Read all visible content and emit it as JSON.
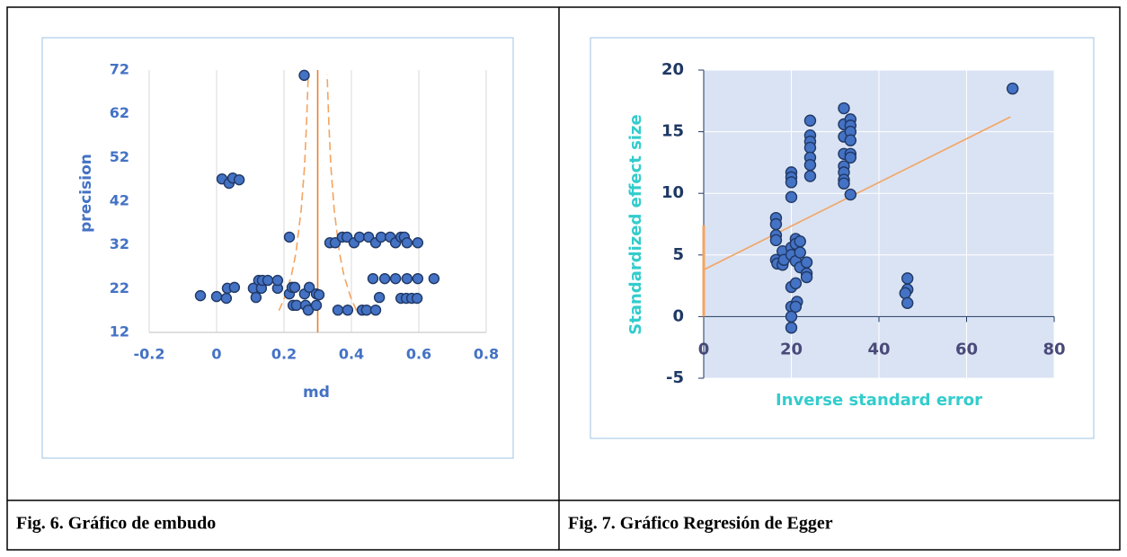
{
  "table": {
    "captions": [
      "Fig. 6. Gráfico de embudo",
      "Fig. 7. Gráfico Regresión de Egger"
    ]
  },
  "chart_data": [
    {
      "type": "scatter",
      "xlabel": "md",
      "ylabel": "precision",
      "xlim": [
        -0.2,
        0.8
      ],
      "xticks": [
        -0.2,
        0,
        0.2,
        0.4,
        0.6,
        0.8
      ],
      "ylim": [
        12,
        72
      ],
      "yticks": [
        12,
        22,
        32,
        42,
        52,
        62,
        72
      ],
      "grid": "x",
      "series": [
        {
          "color": "#4472c4",
          "style": "markers",
          "x": [
            0.26,
            0.016,
            0.037,
            0.048,
            0.067,
            0.216,
            0.336,
            0.352,
            0.373,
            0.387,
            0.408,
            0.424,
            0.451,
            0.472,
            0.488,
            0.515,
            0.531,
            0.547,
            0.557,
            0.565,
            0.597,
            0.464,
            0.499,
            0.531,
            0.565,
            0.597,
            0.645,
            0.483,
            0.547,
            0.563,
            0.579,
            0.595,
            -0.048,
            0,
            0.029,
            0.032,
            0.053,
            0.109,
            0.117,
            0.125,
            0.133,
            0.136,
            0.152,
            0.181,
            0.181,
            0.216,
            0.224,
            0.232,
            0.227,
            0.237,
            0.261,
            0.264,
            0.275,
            0.272,
            0.296,
            0.296,
            0.304,
            0.36,
            0.389,
            0.432,
            0.445,
            0.472
          ],
          "y": [
            70.8,
            47.1,
            46.1,
            47.3,
            46.9,
            33.8,
            32.5,
            32.5,
            33.8,
            33.8,
            32.5,
            33.8,
            33.8,
            32.5,
            33.8,
            33.8,
            32.5,
            33.8,
            33.8,
            32.5,
            32.5,
            24.3,
            24.3,
            24.3,
            24.3,
            24.3,
            24.3,
            20.0,
            19.8,
            19.8,
            19.8,
            19.8,
            20.4,
            20.2,
            19.8,
            22.1,
            22.3,
            22.1,
            20.0,
            23.9,
            22.1,
            23.9,
            23.9,
            22.1,
            23.9,
            20.8,
            22.3,
            22.3,
            18.2,
            18.2,
            20.8,
            18.2,
            22.3,
            17.1,
            20.8,
            18.2,
            20.6,
            17.1,
            17.1,
            17.1,
            17.1,
            17.1
          ]
        },
        {
          "color": "#f4a460",
          "style": "dashed",
          "x": [
            0.185,
            0.202,
            0.222,
            0.235,
            0.251,
            0.261,
            0.267,
            0.272
          ],
          "y": [
            17,
            20,
            25,
            30,
            40,
            50,
            60,
            71
          ]
        },
        {
          "color": "#f4a460",
          "style": "dashed",
          "x": [
            0.415,
            0.398,
            0.378,
            0.365,
            0.349,
            0.339,
            0.333,
            0.328
          ],
          "y": [
            17,
            20,
            25,
            30,
            40,
            50,
            60,
            71
          ]
        },
        {
          "color": "#ed7d31",
          "style": "solid",
          "x": [
            0.3,
            0.3
          ],
          "y": [
            12,
            72
          ]
        }
      ]
    },
    {
      "type": "scatter",
      "xlabel": "Inverse standard error",
      "ylabel": "Standardized effect size",
      "xlim": [
        0,
        80
      ],
      "xticks": [
        0,
        20,
        40,
        60,
        80
      ],
      "ylim": [
        -5,
        20
      ],
      "yticks": [
        -5,
        0,
        5,
        10,
        15,
        20
      ],
      "grid": "both",
      "series": [
        {
          "color": "#4472c4",
          "style": "markers",
          "x": [
            16.5,
            16.5,
            16.5,
            16.5,
            16.5,
            16.8,
            18,
            18,
            18.3,
            20,
            20,
            20,
            20,
            20,
            20,
            20,
            20,
            20,
            20,
            21,
            21,
            21,
            21,
            21.3,
            21,
            22,
            22,
            22,
            23.5,
            23.5,
            23.5,
            24.3,
            24.3,
            24.3,
            24.3,
            24.3,
            24.3,
            24.3,
            32,
            32,
            32,
            32,
            32,
            32,
            32,
            32,
            33.5,
            33.5,
            33.5,
            33.5,
            33.5,
            33.5,
            33.5,
            46.5,
            46.5,
            46,
            46.5,
            70.5
          ],
          "y": [
            8.0,
            7.5,
            6.6,
            6.2,
            4.6,
            4.3,
            5.3,
            4.2,
            4.6,
            11.7,
            11.3,
            10.9,
            9.7,
            2.4,
            0.8,
            0.0,
            -0.9,
            5.6,
            5.0,
            6.3,
            5.9,
            4.5,
            2.7,
            1.2,
            0.8,
            6.1,
            5.2,
            4.0,
            4.4,
            3.5,
            3.2,
            15.9,
            14.7,
            14.2,
            13.7,
            12.9,
            12.3,
            11.4,
            16.9,
            15.6,
            14.6,
            13.2,
            12.2,
            11.7,
            11.1,
            10.8,
            16.0,
            15.5,
            15.0,
            14.3,
            13.2,
            12.9,
            9.9,
            3.1,
            2.2,
            1.9,
            1.1,
            18.5
          ]
        },
        {
          "color": "#f4a460",
          "style": "solid",
          "x": [
            0,
            70
          ],
          "y": [
            3.8,
            16.2
          ]
        },
        {
          "color": "#f4a460",
          "style": "thick",
          "x": [
            0,
            0
          ],
          "y": [
            0,
            7.4
          ]
        }
      ]
    }
  ]
}
